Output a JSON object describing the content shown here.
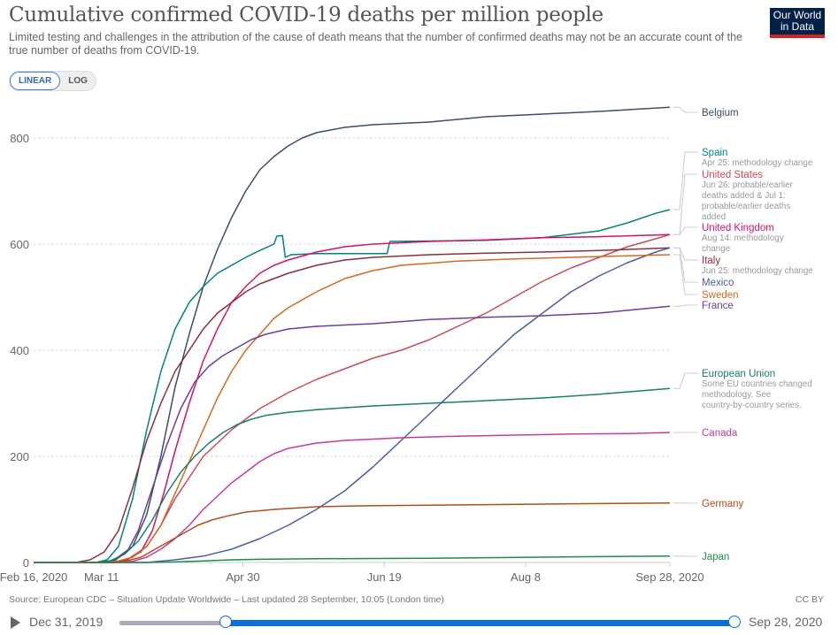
{
  "header": {
    "title": "Cumulative confirmed COVID-19 deaths per million people",
    "subtitle": "Limited testing and challenges in the attribution of the cause of death means that the number of confirmed deaths may not be an accurate count of the true number of deaths from COVID-19.",
    "logo_line1": "Our World",
    "logo_line2": "in Data"
  },
  "scale_toggle": {
    "options": [
      "LINEAR",
      "LOG"
    ],
    "active": "LINEAR"
  },
  "footer": {
    "source": "Source: European CDC – Situation Update Worldwide – Last updated 28 September, 10:05 (London time)",
    "license": "CC BY"
  },
  "timeline": {
    "start_label": "Dec 31, 2019",
    "end_label": "Sep 28, 2020",
    "selected_start": "Feb 16, 2020",
    "selected_end": "Sep 28, 2020"
  },
  "chart_data": {
    "type": "line",
    "title": "Cumulative confirmed COVID-19 deaths per million people",
    "xlabel": "",
    "ylabel": "",
    "x_range": [
      "2020-02-16",
      "2020-09-28"
    ],
    "x_ticks": [
      "Feb 16, 2020",
      "Mar 11",
      "Apr 30",
      "Jun 19",
      "Aug 8",
      "Sep 28, 2020"
    ],
    "x_tick_days": [
      0,
      24,
      74,
      124,
      174,
      225
    ],
    "y_ticks": [
      0,
      200,
      400,
      600,
      800
    ],
    "ylim": [
      0,
      900
    ],
    "grid": "horizontal-dashed",
    "legend": "right-end-labels",
    "series": [
      {
        "name": "Belgium",
        "color": "#3c4e66",
        "note": "",
        "points": [
          [
            0,
            0
          ],
          [
            22,
            0
          ],
          [
            28,
            3
          ],
          [
            35,
            30
          ],
          [
            40,
            90
          ],
          [
            45,
            200
          ],
          [
            50,
            330
          ],
          [
            55,
            430
          ],
          [
            60,
            520
          ],
          [
            65,
            590
          ],
          [
            70,
            650
          ],
          [
            75,
            700
          ],
          [
            80,
            740
          ],
          [
            85,
            765
          ],
          [
            90,
            785
          ],
          [
            95,
            800
          ],
          [
            100,
            810
          ],
          [
            110,
            820
          ],
          [
            120,
            825
          ],
          [
            140,
            830
          ],
          [
            160,
            840
          ],
          [
            180,
            845
          ],
          [
            200,
            850
          ],
          [
            225,
            858
          ]
        ]
      },
      {
        "name": "Spain",
        "color": "#00847e",
        "note": "Apr 25: methodology change",
        "points": [
          [
            0,
            0
          ],
          [
            22,
            0
          ],
          [
            26,
            5
          ],
          [
            30,
            30
          ],
          [
            35,
            120
          ],
          [
            40,
            250
          ],
          [
            45,
            360
          ],
          [
            50,
            440
          ],
          [
            55,
            490
          ],
          [
            60,
            520
          ],
          [
            65,
            545
          ],
          [
            70,
            560
          ],
          [
            75,
            575
          ],
          [
            80,
            588
          ],
          [
            85,
            600
          ],
          [
            86,
            615
          ],
          [
            88,
            616
          ],
          [
            89,
            575
          ],
          [
            91,
            580
          ],
          [
            100,
            582
          ],
          [
            125,
            582
          ],
          [
            126,
            605
          ],
          [
            160,
            607
          ],
          [
            180,
            612
          ],
          [
            200,
            625
          ],
          [
            210,
            640
          ],
          [
            220,
            658
          ],
          [
            225,
            665
          ]
        ]
      },
      {
        "name": "United States",
        "color": "#c84d5a",
        "note": "Jun 26: probable/earlier deaths added & Jul 1: probable/earlier deaths added",
        "points": [
          [
            0,
            0
          ],
          [
            28,
            0
          ],
          [
            33,
            5
          ],
          [
            40,
            30
          ],
          [
            45,
            70
          ],
          [
            50,
            120
          ],
          [
            55,
            160
          ],
          [
            60,
            200
          ],
          [
            70,
            250
          ],
          [
            80,
            290
          ],
          [
            90,
            320
          ],
          [
            100,
            345
          ],
          [
            110,
            365
          ],
          [
            120,
            385
          ],
          [
            130,
            400
          ],
          [
            140,
            420
          ],
          [
            150,
            445
          ],
          [
            160,
            470
          ],
          [
            170,
            500
          ],
          [
            180,
            530
          ],
          [
            190,
            555
          ],
          [
            200,
            575
          ],
          [
            210,
            595
          ],
          [
            220,
            610
          ],
          [
            225,
            618
          ]
        ]
      },
      {
        "name": "United Kingdom",
        "color": "#d0146b",
        "note": "Aug 14: methodology change",
        "points": [
          [
            0,
            0
          ],
          [
            28,
            0
          ],
          [
            33,
            5
          ],
          [
            38,
            20
          ],
          [
            42,
            60
          ],
          [
            46,
            130
          ],
          [
            50,
            210
          ],
          [
            55,
            300
          ],
          [
            60,
            380
          ],
          [
            65,
            440
          ],
          [
            70,
            490
          ],
          [
            75,
            520
          ],
          [
            80,
            545
          ],
          [
            85,
            560
          ],
          [
            90,
            570
          ],
          [
            100,
            585
          ],
          [
            110,
            595
          ],
          [
            120,
            600
          ],
          [
            140,
            605
          ],
          [
            160,
            608
          ],
          [
            180,
            612
          ],
          [
            200,
            614
          ],
          [
            225,
            618
          ]
        ]
      },
      {
        "name": "Italy",
        "color": "#86303a",
        "note": "Jun 25: methodology change",
        "points": [
          [
            0,
            0
          ],
          [
            15,
            0
          ],
          [
            20,
            5
          ],
          [
            25,
            20
          ],
          [
            30,
            60
          ],
          [
            35,
            140
          ],
          [
            40,
            230
          ],
          [
            45,
            300
          ],
          [
            50,
            360
          ],
          [
            55,
            400
          ],
          [
            60,
            440
          ],
          [
            65,
            470
          ],
          [
            70,
            490
          ],
          [
            75,
            510
          ],
          [
            80,
            525
          ],
          [
            85,
            535
          ],
          [
            90,
            545
          ],
          [
            100,
            560
          ],
          [
            110,
            570
          ],
          [
            120,
            575
          ],
          [
            140,
            580
          ],
          [
            160,
            583
          ],
          [
            180,
            585
          ],
          [
            200,
            588
          ],
          [
            225,
            593
          ]
        ]
      },
      {
        "name": "Mexico",
        "color": "#4a5f9e",
        "note": "",
        "points": [
          [
            0,
            0
          ],
          [
            40,
            0
          ],
          [
            50,
            5
          ],
          [
            60,
            12
          ],
          [
            70,
            25
          ],
          [
            80,
            45
          ],
          [
            90,
            70
          ],
          [
            100,
            100
          ],
          [
            110,
            135
          ],
          [
            120,
            180
          ],
          [
            130,
            230
          ],
          [
            140,
            280
          ],
          [
            150,
            330
          ],
          [
            160,
            380
          ],
          [
            170,
            430
          ],
          [
            180,
            470
          ],
          [
            190,
            510
          ],
          [
            200,
            540
          ],
          [
            210,
            565
          ],
          [
            220,
            585
          ],
          [
            225,
            593
          ]
        ]
      },
      {
        "name": "Sweden",
        "color": "#d2691e",
        "note": "",
        "points": [
          [
            0,
            0
          ],
          [
            25,
            0
          ],
          [
            30,
            3
          ],
          [
            35,
            10
          ],
          [
            40,
            30
          ],
          [
            45,
            70
          ],
          [
            50,
            130
          ],
          [
            55,
            190
          ],
          [
            60,
            250
          ],
          [
            65,
            310
          ],
          [
            70,
            360
          ],
          [
            75,
            400
          ],
          [
            80,
            430
          ],
          [
            85,
            460
          ],
          [
            90,
            480
          ],
          [
            100,
            510
          ],
          [
            110,
            535
          ],
          [
            120,
            550
          ],
          [
            130,
            560
          ],
          [
            150,
            568
          ],
          [
            170,
            572
          ],
          [
            190,
            575
          ],
          [
            210,
            578
          ],
          [
            225,
            580
          ]
        ]
      },
      {
        "name": "France",
        "color": "#6a3e9e",
        "note": "",
        "points": [
          [
            0,
            0
          ],
          [
            24,
            0
          ],
          [
            29,
            5
          ],
          [
            33,
            20
          ],
          [
            37,
            60
          ],
          [
            42,
            140
          ],
          [
            47,
            220
          ],
          [
            52,
            290
          ],
          [
            57,
            340
          ],
          [
            62,
            370
          ],
          [
            67,
            390
          ],
          [
            72,
            405
          ],
          [
            77,
            420
          ],
          [
            82,
            430
          ],
          [
            90,
            440
          ],
          [
            100,
            445
          ],
          [
            120,
            450
          ],
          [
            140,
            458
          ],
          [
            160,
            462
          ],
          [
            180,
            465
          ],
          [
            200,
            470
          ],
          [
            225,
            483
          ]
        ]
      },
      {
        "name": "European Union",
        "color": "#18806b",
        "note": "Some EU countries changed methodology. See country-by-country series.",
        "points": [
          [
            0,
            0
          ],
          [
            22,
            0
          ],
          [
            27,
            3
          ],
          [
            32,
            15
          ],
          [
            37,
            40
          ],
          [
            42,
            80
          ],
          [
            47,
            130
          ],
          [
            52,
            170
          ],
          [
            57,
            200
          ],
          [
            62,
            225
          ],
          [
            67,
            245
          ],
          [
            72,
            260
          ],
          [
            77,
            270
          ],
          [
            82,
            277
          ],
          [
            90,
            283
          ],
          [
            100,
            288
          ],
          [
            120,
            295
          ],
          [
            140,
            300
          ],
          [
            160,
            305
          ],
          [
            180,
            310
          ],
          [
            200,
            317
          ],
          [
            225,
            328
          ]
        ]
      },
      {
        "name": "Canada",
        "color": "#c43b9e",
        "note": "",
        "points": [
          [
            0,
            0
          ],
          [
            30,
            0
          ],
          [
            35,
            2
          ],
          [
            40,
            10
          ],
          [
            45,
            25
          ],
          [
            50,
            45
          ],
          [
            55,
            70
          ],
          [
            60,
            100
          ],
          [
            65,
            125
          ],
          [
            70,
            150
          ],
          [
            75,
            170
          ],
          [
            80,
            190
          ],
          [
            85,
            205
          ],
          [
            90,
            215
          ],
          [
            100,
            225
          ],
          [
            110,
            230
          ],
          [
            130,
            235
          ],
          [
            150,
            238
          ],
          [
            170,
            240
          ],
          [
            190,
            242
          ],
          [
            210,
            243
          ],
          [
            225,
            245
          ]
        ]
      },
      {
        "name": "Germany",
        "color": "#b34d1e",
        "note": "",
        "points": [
          [
            0,
            0
          ],
          [
            28,
            0
          ],
          [
            33,
            3
          ],
          [
            38,
            10
          ],
          [
            43,
            25
          ],
          [
            48,
            40
          ],
          [
            53,
            55
          ],
          [
            58,
            70
          ],
          [
            63,
            80
          ],
          [
            68,
            87
          ],
          [
            75,
            95
          ],
          [
            85,
            100
          ],
          [
            100,
            105
          ],
          [
            120,
            107
          ],
          [
            140,
            108
          ],
          [
            160,
            109
          ],
          [
            180,
            110
          ],
          [
            200,
            111
          ],
          [
            225,
            112
          ]
        ]
      },
      {
        "name": "Japan",
        "color": "#1e8c4a",
        "note": "",
        "points": [
          [
            0,
            0
          ],
          [
            40,
            0
          ],
          [
            50,
            1
          ],
          [
            60,
            3
          ],
          [
            70,
            5
          ],
          [
            80,
            6
          ],
          [
            100,
            7
          ],
          [
            120,
            7.5
          ],
          [
            140,
            8
          ],
          [
            160,
            9
          ],
          [
            180,
            10
          ],
          [
            200,
            11
          ],
          [
            225,
            12
          ]
        ]
      }
    ]
  }
}
